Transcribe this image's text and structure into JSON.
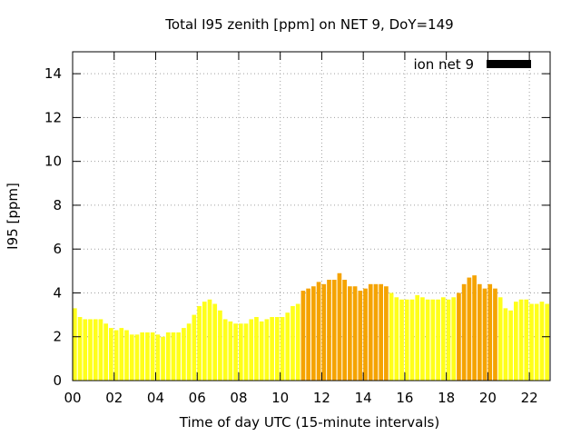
{
  "chart_data": {
    "type": "bar",
    "title": "Total I95 zenith [ppm] on NET 9, DoY=149",
    "xlabel": "Time of day UTC (15-minute intervals)",
    "ylabel": "I95 [ppm]",
    "xlim": [
      0,
      23
    ],
    "ylim": [
      0,
      15
    ],
    "xticks": [
      "00",
      "02",
      "04",
      "06",
      "08",
      "10",
      "12",
      "14",
      "16",
      "18",
      "20",
      "22"
    ],
    "yticks": [
      "0",
      "2",
      "4",
      "6",
      "8",
      "10",
      "12",
      "14"
    ],
    "grid": true,
    "legend": {
      "position": "top-right",
      "label": "ion net 9",
      "color": "#000000"
    },
    "colors": {
      "low": "#ffff1a",
      "high": "#f5a300"
    },
    "series": [
      {
        "interval_hours": 0.25,
        "values": [
          3.3,
          2.9,
          2.8,
          2.8,
          2.8,
          2.8,
          2.6,
          2.4,
          2.3,
          2.4,
          2.3,
          2.1,
          2.1,
          2.2,
          2.2,
          2.2,
          2.1,
          2.0,
          2.2,
          2.2,
          2.2,
          2.4,
          2.6,
          3.0,
          3.4,
          3.6,
          3.7,
          3.5,
          3.2,
          2.8,
          2.7,
          2.6,
          2.6,
          2.6,
          2.8,
          2.9,
          2.7,
          2.8,
          2.9,
          2.9,
          2.9,
          3.1,
          3.4,
          3.5,
          4.1,
          4.2,
          4.3,
          4.5,
          4.4,
          4.6,
          4.6,
          4.9,
          4.6,
          4.3,
          4.3,
          4.1,
          4.2,
          4.4,
          4.4,
          4.4,
          4.3,
          4.0,
          3.8,
          3.7,
          3.7,
          3.7,
          3.9,
          3.8,
          3.7,
          3.7,
          3.7,
          3.8,
          3.7,
          3.8,
          4.0,
          4.4,
          4.7,
          4.8,
          4.4,
          4.2,
          4.4,
          4.2,
          3.8,
          3.3,
          3.2,
          3.6,
          3.7,
          3.7,
          3.5,
          3.5,
          3.6,
          3.5
        ],
        "elevated": [
          false,
          false,
          false,
          false,
          false,
          false,
          false,
          false,
          false,
          false,
          false,
          false,
          false,
          false,
          false,
          false,
          false,
          false,
          false,
          false,
          false,
          false,
          false,
          false,
          false,
          false,
          false,
          false,
          false,
          false,
          false,
          false,
          false,
          false,
          false,
          false,
          false,
          false,
          false,
          false,
          false,
          false,
          false,
          false,
          true,
          true,
          true,
          true,
          true,
          true,
          true,
          true,
          true,
          true,
          true,
          true,
          true,
          true,
          true,
          true,
          true,
          false,
          false,
          false,
          false,
          false,
          false,
          false,
          false,
          false,
          false,
          false,
          false,
          false,
          true,
          true,
          true,
          true,
          true,
          true,
          true,
          true,
          false,
          false,
          false,
          false,
          false,
          false,
          false,
          false,
          false,
          false
        ]
      }
    ]
  }
}
